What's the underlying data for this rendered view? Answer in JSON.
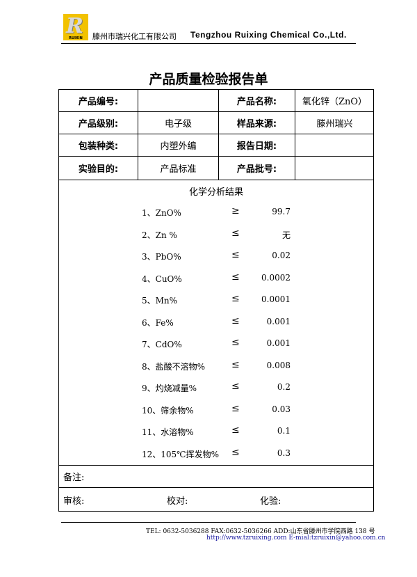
{
  "header": {
    "logo_text": "RUIXIN",
    "company_cn": "滕州市瑞兴化工有限公司",
    "company_en": "Tengzhou Ruixing Chemical Co.,Ltd."
  },
  "title": "产品质量检验报告单",
  "info": [
    {
      "label1": "产品编号:",
      "value1": "",
      "label2": "产品名称:",
      "value2": "氧化锌（ZnO）"
    },
    {
      "label1": "产品级别:",
      "value1": "电子级",
      "label2": "样品来源:",
      "value2": "滕州瑞兴"
    },
    {
      "label1": "包装种类:",
      "value1": "内塑外编",
      "label2": "报告日期:",
      "value2": ""
    },
    {
      "label1": "实验目的:",
      "value1": "产品标准",
      "label2": "产品批号:",
      "value2": ""
    }
  ],
  "results": {
    "heading": "化学分析结果",
    "items": [
      {
        "label": "1、ZnO%",
        "sym": "≥",
        "value": "99.7"
      },
      {
        "label": "2、Zn %",
        "sym": "≤",
        "value": "无"
      },
      {
        "label": "3、PbO%",
        "sym": "≤",
        "value": "0.02"
      },
      {
        "label": "4、CuO%",
        "sym": "≤",
        "value": "0.0002"
      },
      {
        "label": "5、Mn%",
        "sym": "≤",
        "value": "0.0001"
      },
      {
        "label": "6、Fe%",
        "sym": "≤",
        "value": "0.001"
      },
      {
        "label": "7、CdO%",
        "sym": "≤",
        "value": "0.001"
      },
      {
        "label": "8、盐酸不溶物%",
        "sym": "≤",
        "value": "0.008"
      },
      {
        "label": "9、灼烧减量%",
        "sym": "≤",
        "value": "0.2"
      },
      {
        "label": "10、筛余物%",
        "sym": "≤",
        "value": "0.03"
      },
      {
        "label": "11、水溶物%",
        "sym": "≤",
        "value": "0.1"
      },
      {
        "label": "12、105℃挥发物%",
        "sym": "≤",
        "value": "0.3"
      }
    ]
  },
  "remarks_label": "备注:",
  "sign": {
    "review": "审核:",
    "check": "校对:",
    "test": "化验:"
  },
  "footer": {
    "line1": "TEL: 0632-5036288    FAX:0632-5036266 ADD:山东省滕州市学院西路 138 号",
    "url": "http://www.tzruixing.com",
    "email": "E-mial:tzruixin@yahoo.com.cn"
  }
}
